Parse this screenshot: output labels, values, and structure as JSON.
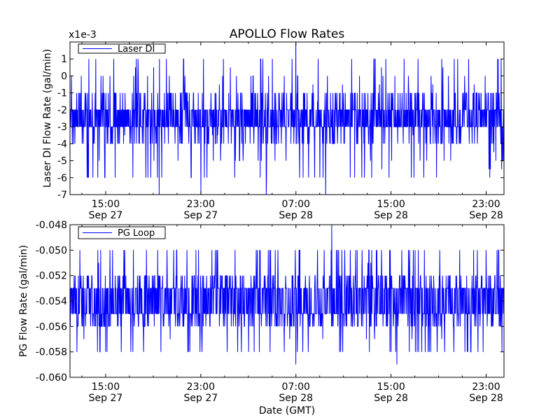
{
  "figure": {
    "title": "APOLLO Flow Rates",
    "xlabel": "Date (GMT)"
  },
  "chart_data": [
    {
      "type": "line",
      "title": "APOLLO Flow Rates",
      "ylabel": "Laser DI Flow Rate (gal/min)",
      "xlabel": "",
      "y_offset_label": "x1e-3",
      "ylim": [
        -7,
        2
      ],
      "yticks": [
        "1",
        "0",
        "-1",
        "-2",
        "-3",
        "-4",
        "-5",
        "-6",
        "-7"
      ],
      "ytick_values": [
        1,
        0,
        -1,
        -2,
        -3,
        -4,
        -5,
        -6,
        -7
      ],
      "xlim_hours": [
        11.5,
        24.5
      ],
      "xticks": [
        {
          "time": "15:00",
          "date": "Sep 27"
        },
        {
          "time": "23:00",
          "date": "Sep 27"
        },
        {
          "time": "07:00",
          "date": "Sep 28"
        },
        {
          "time": "15:00",
          "date": "Sep 28"
        },
        {
          "time": "23:00",
          "date": "Sep 28"
        }
      ],
      "x_range": [
        "Sep 27 12:00",
        "Sep 29 00:00"
      ],
      "legend": {
        "position": "top-left",
        "entries": [
          {
            "name": "Laser DI",
            "color": "#0000ff"
          }
        ]
      },
      "series": [
        {
          "name": "Laser DI",
          "color": "#0000ff",
          "baseline": -2.5,
          "typical_band": [
            -3,
            -2
          ],
          "common_excursions": [
            -4,
            -1
          ],
          "rare_excursions": [
            -6,
            -5,
            0,
            1
          ],
          "extremes": [
            {
              "time": "Sep 27 19:30",
              "value": -7
            },
            {
              "time": "Sep 27 23:00",
              "value": -7
            },
            {
              "time": "Sep 28 04:30",
              "value": -7
            },
            {
              "time": "Sep 28 07:00",
              "value": 2
            },
            {
              "time": "Sep 28 09:30",
              "value": -7
            }
          ]
        }
      ],
      "grid": false
    },
    {
      "type": "line",
      "title": "",
      "ylabel": "PG Flow Rate (gal/min)",
      "xlabel": "Date (GMT)",
      "ylim": [
        -0.06,
        -0.048
      ],
      "yticks": [
        "-0.048",
        "-0.050",
        "-0.052",
        "-0.054",
        "-0.056",
        "-0.058",
        "-0.060"
      ],
      "ytick_values": [
        -0.048,
        -0.05,
        -0.052,
        -0.054,
        -0.056,
        -0.058,
        -0.06
      ],
      "xticks": [
        {
          "time": "15:00",
          "date": "Sep 27"
        },
        {
          "time": "23:00",
          "date": "Sep 27"
        },
        {
          "time": "07:00",
          "date": "Sep 28"
        },
        {
          "time": "15:00",
          "date": "Sep 28"
        },
        {
          "time": "23:00",
          "date": "Sep 28"
        }
      ],
      "x_range": [
        "Sep 27 12:00",
        "Sep 29 00:00"
      ],
      "legend": {
        "position": "top-left",
        "entries": [
          {
            "name": "PG Loop",
            "color": "#0000ff"
          }
        ]
      },
      "series": [
        {
          "name": "PG Loop",
          "color": "#0000ff",
          "baseline": -0.054,
          "typical_band": [
            -0.055,
            -0.053
          ],
          "common_excursions": [
            -0.056,
            -0.052
          ],
          "rare_excursions": [
            -0.058,
            -0.05
          ],
          "extremes": [
            {
              "time": "Sep 28 07:00",
              "value": -0.059
            },
            {
              "time": "Sep 28 10:00",
              "value": -0.048
            },
            {
              "time": "Sep 28 15:30",
              "value": -0.059
            }
          ]
        }
      ],
      "grid": false
    }
  ]
}
